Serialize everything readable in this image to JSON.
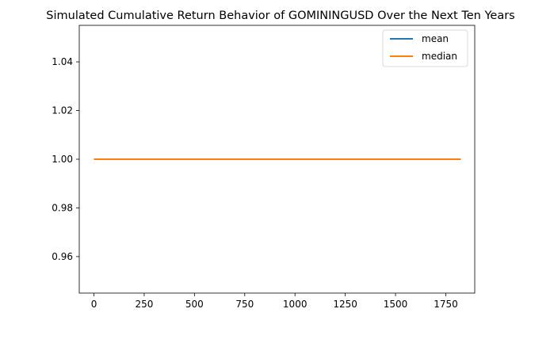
{
  "chart_data": {
    "type": "line",
    "title": "Simulated Cumulative Return Behavior of GOMININGUSD Over the Next Ten Years",
    "xlabel": "",
    "ylabel": "",
    "xlim": [
      -73,
      1894
    ],
    "ylim": [
      0.945,
      1.055
    ],
    "x_ticks": [
      0,
      250,
      500,
      750,
      1000,
      1250,
      1500,
      1750
    ],
    "y_ticks": [
      0.96,
      0.98,
      1.0,
      1.02,
      1.04
    ],
    "y_tick_labels": [
      "0.96",
      "0.98",
      "1.00",
      "1.02",
      "1.04"
    ],
    "grid": false,
    "legend_position": "top-right",
    "series": [
      {
        "name": "mean",
        "color": "#1f77b4",
        "x": [
          0,
          1825
        ],
        "values": [
          1.0,
          1.0
        ]
      },
      {
        "name": "median",
        "color": "#ff7f0e",
        "x": [
          0,
          1825
        ],
        "values": [
          1.0,
          1.0
        ]
      }
    ]
  }
}
